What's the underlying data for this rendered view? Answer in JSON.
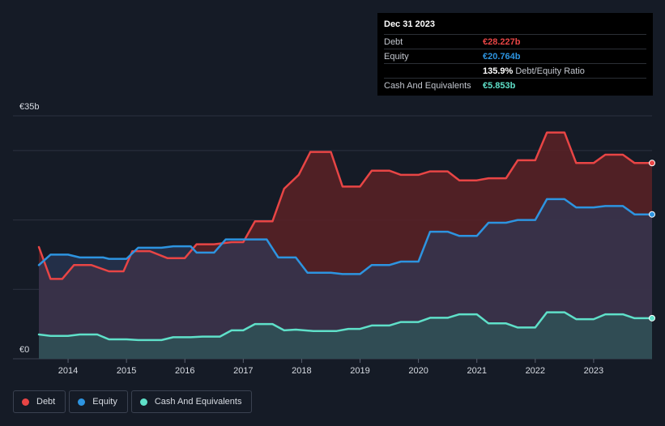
{
  "tooltip": {
    "date": "Dec 31 2023",
    "rows": [
      {
        "label": "Debt",
        "value": "€28.227b",
        "color": "#e84545"
      },
      {
        "label": "Equity",
        "value": "€20.764b",
        "color": "#2d94e0"
      },
      {
        "label": "",
        "value": "135.9%",
        "suffix": "Debt/Equity Ratio",
        "color": "#ffffff"
      },
      {
        "label": "Cash And Equivalents",
        "value": "€5.853b",
        "color": "#5fe0c9"
      }
    ]
  },
  "legend": [
    {
      "label": "Debt",
      "color": "#e84545"
    },
    {
      "label": "Equity",
      "color": "#2d94e0"
    },
    {
      "label": "Cash And Equivalents",
      "color": "#5fe0c9"
    }
  ],
  "chart_data": {
    "type": "area",
    "title": "",
    "xlabel": "",
    "ylabel": "",
    "y_top_label": "€35b",
    "y_bottom_label": "€0",
    "ylim": [
      0,
      35
    ],
    "xlim": [
      2013.5,
      2024.0
    ],
    "x_ticks": [
      {
        "value": 2014,
        "label": "2014"
      },
      {
        "value": 2015,
        "label": "2015"
      },
      {
        "value": 2016,
        "label": "2016"
      },
      {
        "value": 2017,
        "label": "2017"
      },
      {
        "value": 2018,
        "label": "2018"
      },
      {
        "value": 2019,
        "label": "2019"
      },
      {
        "value": 2020,
        "label": "2020"
      },
      {
        "value": 2021,
        "label": "2021"
      },
      {
        "value": 2022,
        "label": "2022"
      },
      {
        "value": 2023,
        "label": "2023"
      }
    ],
    "series": [
      {
        "name": "Debt",
        "color": "#e84545",
        "points": [
          [
            2013.5,
            16.1
          ],
          [
            2013.7,
            11.5
          ],
          [
            2013.9,
            11.5
          ],
          [
            2014.1,
            13.5
          ],
          [
            2014.4,
            13.5
          ],
          [
            2014.7,
            12.6
          ],
          [
            2014.95,
            12.6
          ],
          [
            2015.1,
            15.5
          ],
          [
            2015.4,
            15.5
          ],
          [
            2015.7,
            14.5
          ],
          [
            2016.0,
            14.5
          ],
          [
            2016.2,
            16.5
          ],
          [
            2016.5,
            16.5
          ],
          [
            2016.8,
            16.8
          ],
          [
            2017.0,
            16.8
          ],
          [
            2017.2,
            19.8
          ],
          [
            2017.5,
            19.8
          ],
          [
            2017.7,
            24.5
          ],
          [
            2017.95,
            26.5
          ],
          [
            2018.15,
            29.8
          ],
          [
            2018.5,
            29.8
          ],
          [
            2018.7,
            24.8
          ],
          [
            2019.0,
            24.8
          ],
          [
            2019.2,
            27.1
          ],
          [
            2019.5,
            27.1
          ],
          [
            2019.7,
            26.5
          ],
          [
            2020.0,
            26.5
          ],
          [
            2020.2,
            27.0
          ],
          [
            2020.5,
            27.0
          ],
          [
            2020.7,
            25.7
          ],
          [
            2021.0,
            25.7
          ],
          [
            2021.2,
            26.0
          ],
          [
            2021.5,
            26.0
          ],
          [
            2021.7,
            28.6
          ],
          [
            2022.0,
            28.6
          ],
          [
            2022.2,
            32.6
          ],
          [
            2022.5,
            32.6
          ],
          [
            2022.7,
            28.2
          ],
          [
            2023.0,
            28.2
          ],
          [
            2023.2,
            29.4
          ],
          [
            2023.5,
            29.4
          ],
          [
            2023.7,
            28.2
          ],
          [
            2024.0,
            28.2
          ]
        ]
      },
      {
        "name": "Equity",
        "color": "#2d94e0",
        "points": [
          [
            2013.5,
            13.5
          ],
          [
            2013.7,
            15.0
          ],
          [
            2014.0,
            15.0
          ],
          [
            2014.2,
            14.6
          ],
          [
            2014.6,
            14.6
          ],
          [
            2014.7,
            14.4
          ],
          [
            2015.0,
            14.4
          ],
          [
            2015.2,
            16.0
          ],
          [
            2015.6,
            16.0
          ],
          [
            2015.8,
            16.2
          ],
          [
            2016.1,
            16.2
          ],
          [
            2016.2,
            15.3
          ],
          [
            2016.5,
            15.3
          ],
          [
            2016.7,
            17.2
          ],
          [
            2017.4,
            17.2
          ],
          [
            2017.6,
            14.6
          ],
          [
            2017.9,
            14.6
          ],
          [
            2018.1,
            12.4
          ],
          [
            2018.5,
            12.4
          ],
          [
            2018.7,
            12.2
          ],
          [
            2019.0,
            12.2
          ],
          [
            2019.2,
            13.5
          ],
          [
            2019.5,
            13.5
          ],
          [
            2019.7,
            14.0
          ],
          [
            2020.0,
            14.0
          ],
          [
            2020.2,
            18.3
          ],
          [
            2020.5,
            18.3
          ],
          [
            2020.7,
            17.7
          ],
          [
            2021.0,
            17.7
          ],
          [
            2021.2,
            19.6
          ],
          [
            2021.5,
            19.6
          ],
          [
            2021.7,
            20.0
          ],
          [
            2022.0,
            20.0
          ],
          [
            2022.2,
            23.0
          ],
          [
            2022.5,
            23.0
          ],
          [
            2022.7,
            21.8
          ],
          [
            2023.0,
            21.8
          ],
          [
            2023.2,
            22.0
          ],
          [
            2023.5,
            22.0
          ],
          [
            2023.7,
            20.8
          ],
          [
            2024.0,
            20.8
          ]
        ]
      },
      {
        "name": "Cash And Equivalents",
        "color": "#5fe0c9",
        "points": [
          [
            2013.5,
            3.5
          ],
          [
            2013.7,
            3.3
          ],
          [
            2014.0,
            3.3
          ],
          [
            2014.2,
            3.5
          ],
          [
            2014.5,
            3.5
          ],
          [
            2014.7,
            2.8
          ],
          [
            2015.0,
            2.8
          ],
          [
            2015.2,
            2.7
          ],
          [
            2015.6,
            2.7
          ],
          [
            2015.8,
            3.1
          ],
          [
            2016.1,
            3.1
          ],
          [
            2016.3,
            3.2
          ],
          [
            2016.6,
            3.2
          ],
          [
            2016.8,
            4.1
          ],
          [
            2017.0,
            4.1
          ],
          [
            2017.2,
            5.0
          ],
          [
            2017.5,
            5.0
          ],
          [
            2017.7,
            4.1
          ],
          [
            2017.9,
            4.2
          ],
          [
            2018.2,
            4.0
          ],
          [
            2018.6,
            4.0
          ],
          [
            2018.8,
            4.3
          ],
          [
            2019.0,
            4.3
          ],
          [
            2019.2,
            4.8
          ],
          [
            2019.5,
            4.8
          ],
          [
            2019.7,
            5.3
          ],
          [
            2020.0,
            5.3
          ],
          [
            2020.2,
            5.9
          ],
          [
            2020.5,
            5.9
          ],
          [
            2020.7,
            6.4
          ],
          [
            2021.0,
            6.4
          ],
          [
            2021.2,
            5.1
          ],
          [
            2021.5,
            5.1
          ],
          [
            2021.7,
            4.5
          ],
          [
            2022.0,
            4.5
          ],
          [
            2022.2,
            6.7
          ],
          [
            2022.5,
            6.7
          ],
          [
            2022.7,
            5.7
          ],
          [
            2023.0,
            5.7
          ],
          [
            2023.2,
            6.4
          ],
          [
            2023.5,
            6.4
          ],
          [
            2023.7,
            5.85
          ],
          [
            2024.0,
            5.85
          ]
        ]
      }
    ]
  }
}
